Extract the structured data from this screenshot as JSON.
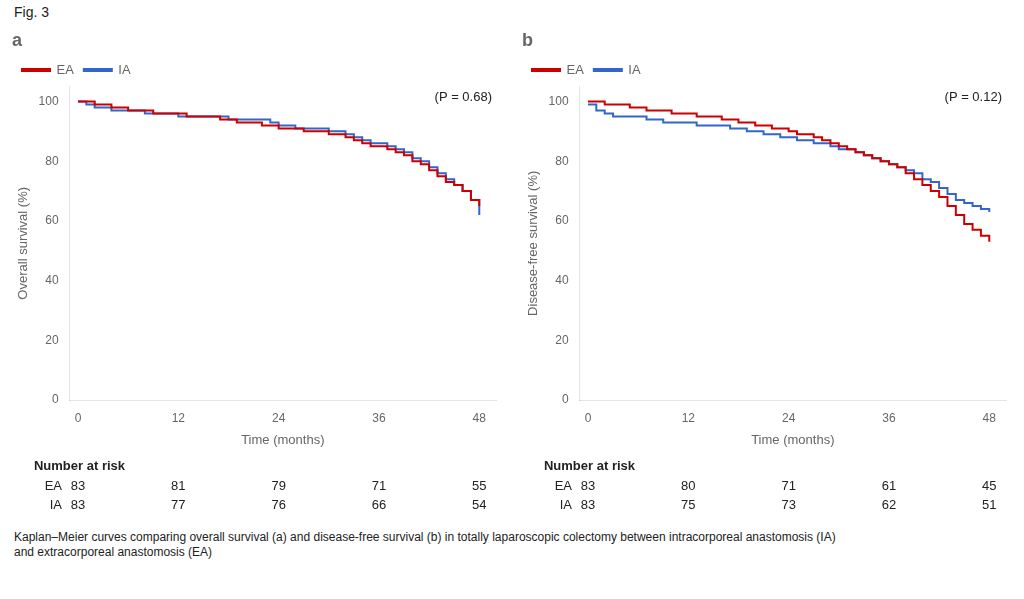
{
  "title": "Fig. 3",
  "caption": "Kaplan–Meier curves comparing overall survival (a) and disease-free survival (b) in totally laparoscopic colectomy between intracorporeal anastomosis (IA)\nand extracorporeal anastomosis (EA)",
  "chart_data": [
    {
      "type": "line",
      "title": "a",
      "x_label": "Time (months)",
      "y_label": "Overall survival (%)",
      "annotations": [
        "(P = 0.68)"
      ],
      "x": [
        0,
        1,
        2,
        3,
        4,
        5,
        6,
        7,
        8,
        9,
        10,
        11,
        12,
        13,
        14,
        15,
        16,
        17,
        18,
        19,
        20,
        21,
        22,
        23,
        24,
        25,
        26,
        27,
        28,
        29,
        30,
        31,
        32,
        33,
        34,
        35,
        36,
        37,
        38,
        39,
        40,
        41,
        42,
        43,
        44,
        45,
        46,
        47,
        48
      ],
      "xlim": [
        -1,
        50
      ],
      "xticks": [
        0,
        12,
        24,
        36,
        48
      ],
      "ylim": [
        0,
        105
      ],
      "yticks": [
        0,
        20,
        40,
        60,
        80,
        100
      ],
      "grid": false,
      "legend": "upper left",
      "line_style": "step",
      "at_risk_label": "Number at risk",
      "at_risk_x": [
        0,
        12,
        24,
        36,
        48
      ],
      "series": [
        {
          "name": "EA",
          "color": "#cc0000",
          "values": [
            100,
            100,
            99,
            99,
            98,
            98,
            97,
            97,
            97,
            96,
            96,
            96,
            96,
            95,
            95,
            95,
            95,
            94,
            94,
            93,
            93,
            93,
            92,
            92,
            91,
            91,
            91,
            90,
            90,
            90,
            89,
            89,
            88,
            87,
            86,
            85,
            85,
            84,
            83,
            82,
            80,
            79,
            77,
            75,
            73,
            72,
            70,
            67,
            65
          ],
          "at_risk": [
            83,
            81,
            79,
            71,
            55
          ]
        },
        {
          "name": "IA",
          "color": "#3366cc",
          "values": [
            100,
            99,
            98,
            98,
            97,
            97,
            97,
            97,
            96,
            96,
            96,
            96,
            95,
            95,
            95,
            95,
            95,
            95,
            94,
            94,
            94,
            94,
            94,
            93,
            92,
            92,
            91,
            91,
            91,
            91,
            90,
            90,
            89,
            88,
            87,
            86,
            86,
            85,
            84,
            83,
            81,
            80,
            78,
            76,
            74,
            72,
            70,
            67,
            62
          ],
          "at_risk": [
            83,
            77,
            76,
            66,
            54
          ]
        }
      ]
    },
    {
      "type": "line",
      "title": "b",
      "x_label": "Time (months)",
      "y_label": "Disease-free survival (%)",
      "annotations": [
        "(P = 0.12)"
      ],
      "x": [
        0,
        1,
        2,
        3,
        4,
        5,
        6,
        7,
        8,
        9,
        10,
        11,
        12,
        13,
        14,
        15,
        16,
        17,
        18,
        19,
        20,
        21,
        22,
        23,
        24,
        25,
        26,
        27,
        28,
        29,
        30,
        31,
        32,
        33,
        34,
        35,
        36,
        37,
        38,
        39,
        40,
        41,
        42,
        43,
        44,
        45,
        46,
        47,
        48
      ],
      "xlim": [
        -1,
        50
      ],
      "xticks": [
        0,
        12,
        24,
        36,
        48
      ],
      "ylim": [
        0,
        105
      ],
      "yticks": [
        0,
        20,
        40,
        60,
        80,
        100
      ],
      "grid": false,
      "legend": "upper left",
      "line_style": "step",
      "at_risk_label": "Number at risk",
      "at_risk_x": [
        0,
        12,
        24,
        36,
        48
      ],
      "series": [
        {
          "name": "EA",
          "color": "#cc0000",
          "values": [
            100,
            100,
            99,
            99,
            99,
            98,
            98,
            97,
            97,
            97,
            96,
            96,
            96,
            95,
            95,
            95,
            94,
            94,
            93,
            93,
            92,
            92,
            91,
            91,
            90,
            89,
            89,
            88,
            87,
            86,
            85,
            84,
            83,
            82,
            81,
            80,
            79,
            78,
            76,
            74,
            72,
            70,
            68,
            65,
            62,
            59,
            57,
            55,
            53
          ],
          "at_risk": [
            83,
            80,
            71,
            61,
            45
          ]
        },
        {
          "name": "IA",
          "color": "#3366cc",
          "values": [
            99,
            97,
            96,
            95,
            95,
            95,
            95,
            94,
            94,
            93,
            93,
            93,
            93,
            92,
            92,
            92,
            92,
            91,
            91,
            90,
            90,
            89,
            89,
            88,
            88,
            87,
            87,
            86,
            86,
            85,
            84,
            84,
            83,
            82,
            81,
            80,
            79,
            78,
            77,
            76,
            74,
            73,
            71,
            69,
            67,
            66,
            65,
            64,
            63
          ],
          "at_risk": [
            83,
            75,
            73,
            62,
            51
          ]
        }
      ]
    }
  ]
}
